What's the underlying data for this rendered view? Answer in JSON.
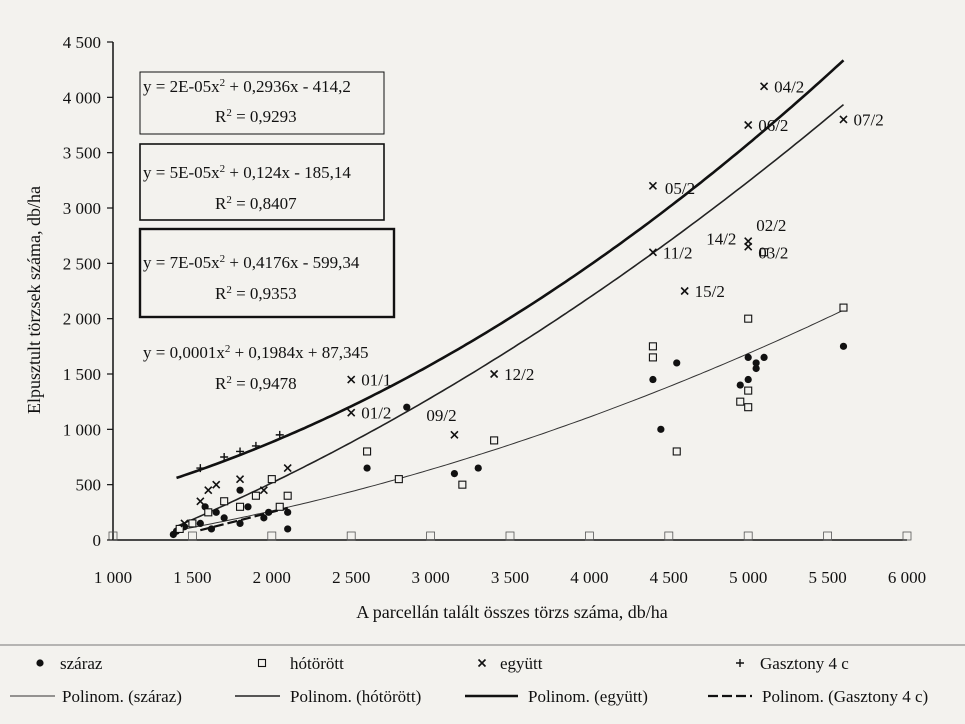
{
  "chart_data": {
    "type": "scatter",
    "xlabel": "A parcellán talált összes törzs száma, db/ha",
    "ylabel": "Elpusztult törzsek száma, db/ha",
    "xlim": [
      1000,
      6000
    ],
    "ylim": [
      0,
      4500
    ],
    "xticks": [
      "1 000",
      "1 500",
      "2 000",
      "2 500",
      "3 000",
      "3 500",
      "4 000",
      "4 500",
      "5 000",
      "5 500",
      "6 000"
    ],
    "yticks": [
      "0",
      "500",
      "1 000",
      "1 500",
      "2 000",
      "2 500",
      "3 000",
      "3 500",
      "4 000",
      "4 500"
    ],
    "series": [
      {
        "name": "száraz",
        "marker": "dot",
        "points": [
          [
            1380,
            50
          ],
          [
            1400,
            80
          ],
          [
            1450,
            120
          ],
          [
            1550,
            150
          ],
          [
            1580,
            300
          ],
          [
            1620,
            100
          ],
          [
            1650,
            250
          ],
          [
            1700,
            200
          ],
          [
            1800,
            150
          ],
          [
            1800,
            450
          ],
          [
            1850,
            300
          ],
          [
            1950,
            200
          ],
          [
            1980,
            250
          ],
          [
            2100,
            250
          ],
          [
            2100,
            100
          ],
          [
            2600,
            650
          ],
          [
            2850,
            1200
          ],
          [
            3150,
            600
          ],
          [
            3300,
            650
          ],
          [
            4400,
            1450
          ],
          [
            4450,
            1000
          ],
          [
            4550,
            1600
          ],
          [
            4950,
            1400
          ],
          [
            5000,
            1450
          ],
          [
            5000,
            1650
          ],
          [
            5050,
            1600
          ],
          [
            5050,
            1550
          ],
          [
            5100,
            1650
          ],
          [
            5600,
            1750
          ]
        ]
      },
      {
        "name": "hótörött",
        "marker": "square",
        "points": [
          [
            1420,
            100
          ],
          [
            1500,
            150
          ],
          [
            1600,
            250
          ],
          [
            1700,
            350
          ],
          [
            1800,
            300
          ],
          [
            1900,
            400
          ],
          [
            2000,
            550
          ],
          [
            2050,
            300
          ],
          [
            2100,
            400
          ],
          [
            2600,
            800
          ],
          [
            2800,
            550
          ],
          [
            3200,
            500
          ],
          [
            3400,
            900
          ],
          [
            4400,
            1650
          ],
          [
            4400,
            1750
          ],
          [
            4550,
            800
          ],
          [
            4950,
            1250
          ],
          [
            5000,
            1350
          ],
          [
            5000,
            2000
          ],
          [
            5000,
            1200
          ],
          [
            5100,
            2600
          ],
          [
            5600,
            2100
          ]
        ]
      },
      {
        "name": "együtt",
        "marker": "x",
        "points": [
          [
            1450,
            150
          ],
          [
            1550,
            350
          ],
          [
            1600,
            450
          ],
          [
            1650,
            500
          ],
          [
            1800,
            550
          ],
          [
            1950,
            450
          ],
          [
            2100,
            650
          ],
          [
            2500,
            1450
          ],
          [
            2500,
            1150
          ],
          [
            3150,
            950
          ],
          [
            3400,
            1500
          ],
          [
            4400,
            3200
          ],
          [
            4400,
            2600
          ],
          [
            4600,
            2250
          ],
          [
            5000,
            3750
          ],
          [
            5000,
            2700
          ],
          [
            5000,
            2650
          ],
          [
            5100,
            4100
          ],
          [
            5600,
            3800
          ]
        ],
        "labels": [
          [
            "01/1",
            2500,
            1450
          ],
          [
            "01/2",
            2500,
            1150
          ],
          [
            "09/2",
            3150,
            950
          ],
          [
            "12/2",
            3400,
            1500
          ],
          [
            "05/2",
            4400,
            3200
          ],
          [
            "11/2",
            4400,
            2600
          ],
          [
            "15/2",
            4600,
            2250
          ],
          [
            "06/2",
            5000,
            3750
          ],
          [
            "02/2",
            5000,
            2700
          ],
          [
            "14/2",
            5000,
            2650
          ],
          [
            "03/2",
            5000,
            2650
          ],
          [
            "04/2",
            5100,
            4100
          ],
          [
            "07/2",
            5600,
            3800
          ]
        ]
      },
      {
        "name": "Gasztony 4 c",
        "marker": "plus",
        "points": [
          [
            1550,
            650
          ],
          [
            1700,
            750
          ],
          [
            1800,
            800
          ],
          [
            1900,
            850
          ],
          [
            2050,
            950
          ]
        ]
      }
    ],
    "trendlines": [
      {
        "name": "Polinom. (száraz)",
        "style": "thin",
        "a": 5e-05,
        "b": 0.124,
        "c": -185.14,
        "range": [
          1400,
          5600
        ]
      },
      {
        "name": "Polinom. (hótörött)",
        "style": "medium",
        "a": 7e-05,
        "b": 0.4176,
        "c": -599.34,
        "range": [
          1400,
          5600
        ]
      },
      {
        "name": "Polinom. (együtt)",
        "style": "thick",
        "a": 0.0001,
        "b": 0.1984,
        "c": 87.345,
        "range": [
          1400,
          5600
        ]
      },
      {
        "name": "Polinom. (Gasztony 4 c)",
        "style": "dashed",
        "a": 2e-05,
        "b": 0.2936,
        "c": -414.2,
        "range": [
          1550,
          2100
        ]
      }
    ],
    "equations": [
      {
        "eq": "y = 2E-05x",
        "rest": " + 0,2936x - 414,2",
        "r2": "R",
        "r2val": " = 0,9293"
      },
      {
        "eq": "y = 5E-05x",
        "rest": " + 0,124x - 185,14",
        "r2": "R",
        "r2val": " = 0,8407"
      },
      {
        "eq": "y = 7E-05x",
        "rest": " + 0,4176x - 599,34",
        "r2": "R",
        "r2val": " = 0,9353"
      },
      {
        "eq": "y = 0,0001x",
        "rest": " + 0,1984x + 87,345",
        "r2": "R",
        "r2val": " = 0,9478"
      }
    ],
    "legend": {
      "placement": "bottom",
      "items": [
        "száraz",
        "hótörött",
        "együtt",
        "Gasztony 4 c",
        "Polinom. (száraz)",
        "Polinom. (hótörött)",
        "Polinom. (együtt)",
        "Polinom. (Gasztony 4 c)"
      ]
    },
    "grid": false
  }
}
